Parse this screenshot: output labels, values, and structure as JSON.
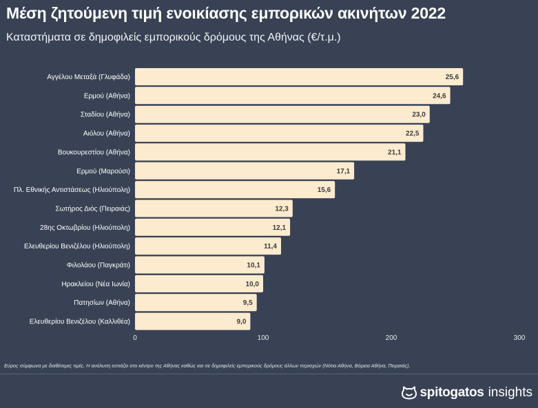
{
  "header": {
    "title": "Μέση ζητούμενη τιμή ενοικίασης εμπορικών ακινήτων 2022",
    "subtitle": "Καταστήματα σε δημοφιλείς εμπορικούς δρόμους της Αθήνας (€/τ.μ.)"
  },
  "chart_data": {
    "type": "bar",
    "orientation": "horizontal",
    "categories": [
      "Αγγέλου Μεταξά (Γλυφάδα)",
      "Ερμού (Αθήνα)",
      "Σταδίου (Αθήνα)",
      "Αιόλου (Αθήνα)",
      "Βουκουρεστίου (Αθήνα)",
      "Ερμού (Μαρούσι)",
      "Πλ. Εθνικής Αντιστάσεως (Ηλιούπολη)",
      "Σωτήρος Διός (Πειραιάς)",
      "28ης Οκτωβρίου (Ηλιούπολη)",
      "Ελευθερίου Βενιζέλου (Ηλιούπολη)",
      "Φιλολάου (Παγκράτι)",
      "Ηρακλείου (Νέα Ιωνία)",
      "Πατησίων (Αθήνα)",
      "Ελευθερίου Βενιζέλου (Καλλιθέα)"
    ],
    "values": [
      25.6,
      24.6,
      23.0,
      22.5,
      21.1,
      17.1,
      15.6,
      12.3,
      12.1,
      11.4,
      10.1,
      10.0,
      9.5,
      9.0
    ],
    "value_labels": [
      "25,6",
      "24,6",
      "23,0",
      "22,5",
      "21,1",
      "17,1",
      "15,6",
      "12,3",
      "12,1",
      "11,4",
      "10,1",
      "10,0",
      "9,5",
      "9,0"
    ],
    "ticks": [
      0,
      100,
      200,
      300
    ],
    "tick_labels": [
      "0",
      "100",
      "200",
      "300"
    ],
    "xlim": [
      0,
      300
    ],
    "bar_scale": 10,
    "xlabel": "",
    "ylabel": "",
    "grid": false,
    "legend": "none",
    "bar_color": "#fdebcf"
  },
  "footnote": "Εύρος σύμφωνα με διαθέσιμες τιμές. Η ανάλυση εστιάζει στο κέντρο της Αθήνας καθώς και σε δημοφιλείς εμπορικούς δρόμους άλλων περιοχών (Νότια Αθήνα, Βόρεια Αθήνα, Πειραιάς).",
  "brand": {
    "icon": "cat-face-icon",
    "name": "spitogatos",
    "suffix": "insights"
  },
  "colors": {
    "background": "#384254",
    "bar": "#fdebcf",
    "text": "#ffffff"
  }
}
